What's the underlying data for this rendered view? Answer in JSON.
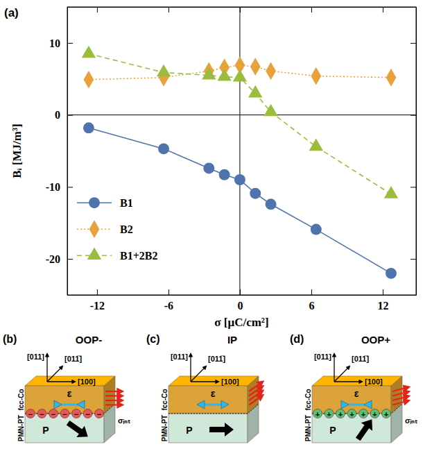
{
  "chart_data": {
    "type": "line",
    "annotations": [
      "(a)"
    ],
    "x_label": "σ [μC/cm²]",
    "y_label": "Bᵢ [MJ/m³]",
    "x": [
      -12.7,
      -6.4,
      -2.6,
      -1.3,
      0,
      1.3,
      2.6,
      6.4,
      12.7
    ],
    "series": [
      {
        "name": "B1",
        "color": "#4e73ad",
        "marker": "circle",
        "line_style": "solid",
        "values": [
          -1.8,
          -4.7,
          -7.4,
          -8.3,
          -9.0,
          -10.9,
          -12.4,
          -15.9,
          -22.0
        ]
      },
      {
        "name": "B2",
        "color": "#e9a23b",
        "marker": "diamond",
        "line_style": "dotted",
        "values": [
          4.9,
          5.2,
          6.1,
          6.6,
          6.9,
          6.7,
          6.1,
          5.4,
          5.2
        ]
      },
      {
        "name": "B1+2B2",
        "color": "#9bbd3d",
        "marker": "triangle",
        "line_style": "dashed",
        "values": [
          8.5,
          5.9,
          5.5,
          5.3,
          5.2,
          3.0,
          0.4,
          -4.4,
          -11.0
        ]
      }
    ],
    "xlim": [
      -14.5,
      14.8
    ],
    "ylim": [
      -25,
      15
    ],
    "xticks": [
      -12,
      -6,
      0,
      6,
      12
    ],
    "yticks": [
      -20,
      -10,
      0,
      10
    ],
    "legend": "left",
    "grid": false
  },
  "diagrams": [
    {
      "letter": "(b)",
      "title": "OOP-",
      "directions": [
        "[011]",
        "[011̅]",
        "[100]"
      ],
      "layers": [
        "fcc-Co",
        "PMN-PT"
      ],
      "strain": "ε",
      "polarization": "P",
      "interface": {
        "symbol": "−",
        "label": "σᵢₙₜ"
      }
    },
    {
      "letter": "(c)",
      "title": "IP",
      "directions": [
        "[011]",
        "[011̅]",
        "[100]"
      ],
      "layers": [
        "fcc-Co",
        "PMN-PT"
      ],
      "strain": "ε",
      "polarization": "P"
    },
    {
      "letter": "(d)",
      "title": "OOP+",
      "directions": [
        "[011]",
        "[011̅]",
        "[100]"
      ],
      "layers": [
        "fcc-Co",
        "PMN-PT"
      ],
      "strain": "ε",
      "polarization": "P",
      "interface": {
        "symbol": "+",
        "label": "σᵢₙₜ"
      }
    }
  ]
}
